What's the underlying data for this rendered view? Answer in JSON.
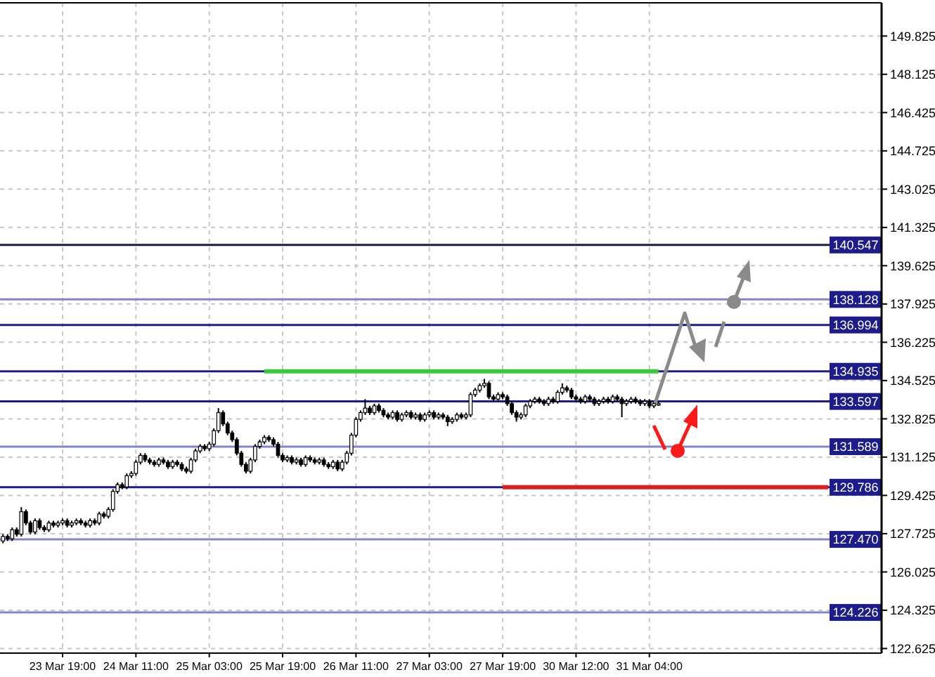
{
  "chart_data": {
    "type": "candlestick",
    "categories": [
      null,
      null,
      null,
      null,
      null,
      null,
      null,
      null,
      null,
      null,
      null,
      null,
      null,
      "23 Mar 19:00",
      null,
      null,
      null,
      null,
      null,
      null,
      null,
      null,
      null,
      null,
      null,
      null,
      null,
      null,
      null,
      "24 Mar 11:00",
      null,
      null,
      null,
      null,
      null,
      null,
      null,
      null,
      null,
      null,
      null,
      null,
      null,
      null,
      null,
      "25 Mar 03:00",
      null,
      null,
      null,
      null,
      null,
      null,
      null,
      null,
      null,
      null,
      null,
      null,
      null,
      null,
      null,
      "25 Mar 19:00",
      null,
      null,
      null,
      null,
      null,
      null,
      null,
      null,
      null,
      null,
      null,
      null,
      null,
      null,
      null,
      "26 Mar 11:00",
      null,
      null,
      null,
      null,
      null,
      null,
      null,
      null,
      null,
      null,
      null,
      null,
      null,
      null,
      null,
      "27 Mar 03:00",
      null,
      null,
      null,
      null,
      null,
      null,
      null,
      null,
      null,
      null,
      null,
      null,
      null,
      null,
      null,
      "27 Mar 19:00",
      null,
      null,
      null,
      null,
      null,
      null,
      null,
      null,
      null,
      null,
      null,
      null,
      null,
      null,
      null,
      "30 Mar 12:00",
      null,
      null,
      null,
      null,
      null,
      null,
      null,
      null,
      null,
      null,
      null,
      null,
      null,
      null,
      null,
      "31 Mar 04:00",
      null,
      null,
      null,
      null,
      null,
      null,
      null,
      null,
      null,
      null,
      null,
      null,
      null,
      null,
      null,
      null,
      null,
      null,
      null,
      null,
      null,
      null,
      null,
      null,
      null,
      null,
      null,
      null,
      null,
      null,
      null,
      null,
      null,
      null,
      null,
      null,
      null,
      null,
      null,
      null,
      null,
      null,
      null,
      null,
      null,
      null,
      null,
      null,
      null,
      null
    ],
    "ohlc": [
      [
        127.4,
        127.7,
        127.3,
        127.6
      ],
      [
        127.6,
        127.7,
        127.4,
        127.5
      ],
      [
        127.5,
        128.0,
        127.4,
        127.9
      ],
      [
        127.9,
        128.0,
        127.6,
        127.7
      ],
      [
        127.7,
        128.9,
        127.6,
        128.7
      ],
      [
        128.7,
        128.8,
        128.1,
        128.2
      ],
      [
        128.2,
        128.3,
        127.7,
        127.8
      ],
      [
        127.8,
        128.4,
        127.7,
        128.3
      ],
      [
        128.3,
        128.4,
        127.9,
        128.0
      ],
      [
        128.0,
        128.1,
        127.8,
        127.9
      ],
      [
        127.9,
        128.3,
        127.8,
        128.2
      ],
      [
        128.2,
        128.3,
        128.0,
        128.1
      ],
      [
        128.1,
        128.3,
        128.0,
        128.2
      ],
      [
        128.2,
        128.4,
        128.1,
        128.3
      ],
      [
        128.3,
        128.4,
        128.0,
        128.1
      ],
      [
        128.1,
        128.3,
        128.0,
        128.2
      ],
      [
        128.2,
        128.4,
        128.1,
        128.3
      ],
      [
        128.3,
        128.4,
        128.1,
        128.2
      ],
      [
        128.2,
        128.3,
        128.0,
        128.1
      ],
      [
        128.1,
        128.4,
        128.0,
        128.3
      ],
      [
        128.3,
        128.4,
        128.1,
        128.2
      ],
      [
        128.2,
        128.7,
        128.1,
        128.6
      ],
      [
        128.6,
        128.7,
        128.4,
        128.5
      ],
      [
        128.5,
        128.9,
        128.4,
        128.8
      ],
      [
        128.8,
        129.7,
        128.7,
        129.6
      ],
      [
        129.6,
        130.0,
        129.5,
        129.9
      ],
      [
        129.9,
        130.0,
        129.7,
        129.8
      ],
      [
        129.8,
        130.4,
        129.7,
        130.3
      ],
      [
        130.3,
        130.5,
        130.2,
        130.4
      ],
      [
        130.4,
        131.0,
        130.3,
        130.9
      ],
      [
        130.9,
        131.3,
        130.8,
        131.2
      ],
      [
        131.2,
        131.3,
        130.9,
        131.0
      ],
      [
        131.0,
        131.1,
        130.8,
        130.9
      ],
      [
        130.9,
        131.0,
        130.7,
        130.8
      ],
      [
        130.8,
        131.1,
        130.7,
        131.0
      ],
      [
        131.0,
        131.1,
        130.8,
        130.9
      ],
      [
        130.9,
        131.0,
        130.6,
        130.7
      ],
      [
        130.7,
        131.0,
        130.6,
        130.9
      ],
      [
        130.9,
        131.0,
        130.7,
        130.8
      ],
      [
        130.8,
        130.9,
        130.5,
        130.6
      ],
      [
        130.6,
        130.7,
        130.4,
        130.5
      ],
      [
        130.5,
        131.1,
        130.4,
        131.0
      ],
      [
        131.0,
        131.5,
        130.9,
        131.4
      ],
      [
        131.4,
        131.7,
        131.3,
        131.6
      ],
      [
        131.6,
        131.7,
        131.4,
        131.5
      ],
      [
        131.5,
        131.8,
        131.4,
        131.7
      ],
      [
        131.7,
        132.4,
        131.6,
        132.3
      ],
      [
        132.3,
        133.3,
        132.2,
        133.1
      ],
      [
        133.1,
        133.2,
        132.5,
        132.6
      ],
      [
        132.6,
        132.7,
        132.1,
        132.2
      ],
      [
        132.2,
        132.3,
        131.8,
        131.9
      ],
      [
        131.9,
        132.0,
        131.2,
        131.3
      ],
      [
        131.3,
        131.4,
        130.7,
        130.8
      ],
      [
        130.8,
        130.9,
        130.4,
        130.5
      ],
      [
        130.5,
        131.1,
        130.4,
        131.0
      ],
      [
        131.0,
        131.7,
        130.9,
        131.6
      ],
      [
        131.6,
        131.9,
        131.5,
        131.8
      ],
      [
        131.8,
        132.1,
        131.7,
        132.0
      ],
      [
        132.0,
        132.1,
        131.8,
        131.9
      ],
      [
        131.9,
        132.0,
        131.6,
        131.7
      ],
      [
        131.7,
        131.8,
        131.1,
        131.2
      ],
      [
        131.2,
        131.3,
        130.9,
        131.0
      ],
      [
        131.0,
        131.2,
        130.9,
        131.1
      ],
      [
        131.1,
        131.2,
        130.8,
        130.9
      ],
      [
        130.9,
        131.1,
        130.8,
        131.0
      ],
      [
        131.0,
        131.1,
        130.7,
        130.8
      ],
      [
        130.8,
        131.2,
        130.7,
        131.1
      ],
      [
        131.1,
        131.2,
        130.9,
        131.0
      ],
      [
        131.0,
        131.1,
        130.8,
        130.9
      ],
      [
        130.9,
        131.1,
        130.8,
        131.0
      ],
      [
        131.0,
        131.1,
        130.7,
        130.8
      ],
      [
        130.8,
        130.9,
        130.6,
        130.7
      ],
      [
        130.7,
        131.0,
        130.6,
        130.9
      ],
      [
        130.9,
        131.0,
        130.5,
        130.6
      ],
      [
        130.6,
        131.0,
        130.5,
        130.9
      ],
      [
        130.9,
        131.4,
        130.8,
        131.3
      ],
      [
        131.3,
        132.2,
        131.2,
        132.1
      ],
      [
        132.1,
        132.9,
        132.0,
        132.8
      ],
      [
        132.8,
        133.2,
        132.7,
        133.1
      ],
      [
        133.1,
        133.7,
        133.0,
        133.3
      ],
      [
        133.3,
        133.4,
        133.0,
        133.1
      ],
      [
        133.1,
        133.5,
        133.0,
        133.4
      ],
      [
        133.4,
        133.5,
        133.1,
        133.2
      ],
      [
        133.2,
        133.3,
        132.9,
        133.0
      ],
      [
        133.0,
        133.1,
        132.8,
        132.9
      ],
      [
        132.9,
        133.2,
        132.8,
        133.1
      ],
      [
        133.1,
        133.2,
        132.7,
        132.8
      ],
      [
        132.8,
        133.1,
        132.7,
        133.0
      ],
      [
        133.0,
        133.2,
        132.9,
        133.1
      ],
      [
        133.1,
        133.2,
        132.8,
        132.9
      ],
      [
        132.9,
        133.1,
        132.8,
        133.0
      ],
      [
        133.0,
        133.1,
        132.7,
        132.8
      ],
      [
        132.8,
        133.1,
        132.7,
        133.0
      ],
      [
        133.0,
        133.2,
        132.9,
        133.1
      ],
      [
        133.1,
        133.2,
        132.8,
        132.9
      ],
      [
        132.9,
        133.1,
        132.8,
        133.0
      ],
      [
        133.0,
        133.1,
        132.8,
        132.9
      ],
      [
        132.9,
        133.0,
        132.5,
        132.7
      ],
      [
        132.7,
        132.9,
        132.6,
        132.8
      ],
      [
        132.8,
        133.1,
        132.7,
        133.0
      ],
      [
        133.0,
        133.1,
        132.8,
        132.9
      ],
      [
        132.9,
        133.1,
        132.8,
        133.0
      ],
      [
        133.0,
        134.0,
        132.9,
        133.9
      ],
      [
        133.9,
        134.2,
        133.8,
        134.1
      ],
      [
        134.1,
        134.4,
        134.0,
        134.3
      ],
      [
        134.3,
        134.6,
        134.2,
        134.4
      ],
      [
        134.4,
        134.5,
        133.7,
        133.8
      ],
      [
        133.8,
        133.9,
        133.6,
        133.7
      ],
      [
        133.7,
        134.0,
        133.6,
        133.9
      ],
      [
        133.9,
        134.0,
        133.7,
        133.8
      ],
      [
        133.8,
        133.9,
        133.4,
        133.5
      ],
      [
        133.5,
        133.6,
        133.0,
        133.1
      ],
      [
        133.1,
        133.2,
        132.7,
        132.9
      ],
      [
        132.9,
        133.1,
        132.8,
        133.0
      ],
      [
        133.0,
        133.5,
        132.9,
        133.4
      ],
      [
        133.4,
        133.7,
        133.3,
        133.6
      ],
      [
        133.6,
        133.8,
        133.5,
        133.7
      ],
      [
        133.7,
        133.8,
        133.5,
        133.6
      ],
      [
        133.6,
        133.7,
        133.4,
        133.5
      ],
      [
        133.5,
        133.8,
        133.4,
        133.7
      ],
      [
        133.7,
        133.8,
        133.5,
        133.6
      ],
      [
        133.6,
        134.1,
        133.5,
        134.0
      ],
      [
        134.0,
        134.4,
        133.9,
        134.2
      ],
      [
        134.2,
        134.3,
        134.0,
        134.1
      ],
      [
        134.1,
        134.2,
        133.7,
        133.8
      ],
      [
        133.8,
        133.9,
        133.6,
        133.7
      ],
      [
        133.7,
        133.8,
        133.5,
        133.6
      ],
      [
        133.6,
        133.9,
        133.5,
        133.8
      ],
      [
        133.8,
        133.9,
        133.6,
        133.7
      ],
      [
        133.7,
        133.8,
        133.4,
        133.5
      ],
      [
        133.5,
        133.7,
        133.4,
        133.6
      ],
      [
        133.6,
        133.8,
        133.5,
        133.7
      ],
      [
        133.7,
        133.8,
        133.5,
        133.6
      ],
      [
        133.6,
        133.9,
        133.5,
        133.8
      ],
      [
        133.8,
        133.9,
        133.6,
        133.7
      ],
      [
        133.7,
        133.8,
        132.9,
        133.5
      ],
      [
        133.5,
        133.7,
        133.4,
        133.6
      ],
      [
        133.6,
        133.8,
        133.5,
        133.7
      ],
      [
        133.7,
        133.8,
        133.5,
        133.6
      ],
      [
        133.6,
        133.7,
        133.4,
        133.5
      ],
      [
        133.5,
        133.7,
        133.4,
        133.6
      ],
      [
        133.6,
        133.7,
        133.3,
        133.4
      ],
      [
        133.4,
        133.6,
        133.3,
        133.5
      ],
      [
        133.5,
        133.6,
        133.4,
        133.5
      ],
      null,
      null,
      null,
      null,
      null,
      null,
      null,
      null,
      null,
      null,
      null,
      null,
      null,
      null,
      null,
      null,
      null,
      null,
      null,
      null,
      null,
      null,
      null,
      null,
      null,
      null,
      null,
      null,
      null,
      null,
      null,
      null,
      null,
      null,
      null,
      null,
      null,
      null,
      null,
      null,
      null,
      null,
      null,
      null,
      null,
      null,
      null,
      null
    ],
    "series": [
      {
        "type": "line",
        "color": "#3cc83c",
        "values": [
          null,
          null,
          null,
          null,
          null,
          null,
          null,
          null,
          null,
          null,
          null,
          null,
          null,
          null,
          null,
          null,
          null,
          null,
          null,
          null,
          null,
          null,
          null,
          null,
          null,
          null,
          null,
          null,
          null,
          null,
          null,
          null,
          null,
          null,
          null,
          null,
          null,
          null,
          null,
          null,
          null,
          null,
          null,
          null,
          null,
          null,
          null,
          null,
          null,
          null,
          null,
          null,
          null,
          null,
          null,
          null,
          null,
          134.935,
          134.935,
          134.935,
          134.935,
          134.935,
          134.935,
          134.935,
          134.935,
          134.935,
          134.935,
          134.935,
          134.935,
          134.935,
          134.935,
          134.935,
          134.935,
          134.935,
          134.935,
          134.935,
          134.935,
          134.935,
          134.935,
          134.935,
          134.935,
          134.935,
          134.935,
          134.935,
          134.935,
          134.935,
          134.935,
          134.935,
          134.935,
          134.935,
          134.935,
          134.935,
          134.935,
          134.935,
          134.935,
          134.935,
          134.935,
          134.935,
          134.935,
          134.935,
          134.935,
          134.935,
          134.935,
          134.935,
          134.935,
          134.935,
          134.935,
          134.935,
          134.935,
          134.935,
          134.935,
          134.935,
          134.935,
          134.935,
          134.935,
          134.935,
          134.935,
          134.935,
          134.935,
          134.935,
          134.935,
          134.935,
          134.935,
          134.935,
          134.935,
          134.935,
          134.935,
          134.935,
          134.935,
          134.935,
          134.935,
          134.935,
          134.935,
          134.935,
          134.935,
          134.935,
          134.935,
          134.935,
          134.935,
          134.935,
          134.935,
          134.935,
          134.935,
          134.935,
          null,
          null,
          null,
          null,
          null,
          null,
          null,
          null,
          null,
          null,
          null,
          null,
          null,
          null,
          null,
          null,
          null,
          null,
          null,
          null,
          null,
          null,
          null,
          null,
          null,
          null,
          null,
          null,
          null,
          null,
          null,
          null,
          null,
          null,
          null,
          null,
          null,
          null,
          null,
          null,
          null,
          null,
          null,
          null,
          null,
          null,
          null,
          null
        ]
      },
      {
        "type": "line",
        "color": "#e01c1c",
        "values": [
          null,
          null,
          null,
          null,
          null,
          null,
          null,
          null,
          null,
          null,
          null,
          null,
          null,
          null,
          null,
          null,
          null,
          null,
          null,
          null,
          null,
          null,
          null,
          null,
          null,
          null,
          null,
          null,
          null,
          null,
          null,
          null,
          null,
          null,
          null,
          null,
          null,
          null,
          null,
          null,
          null,
          null,
          null,
          null,
          null,
          null,
          null,
          null,
          null,
          null,
          null,
          null,
          null,
          null,
          null,
          null,
          null,
          null,
          null,
          null,
          null,
          null,
          null,
          null,
          null,
          null,
          null,
          null,
          null,
          null,
          null,
          null,
          null,
          null,
          null,
          null,
          null,
          null,
          null,
          null,
          null,
          null,
          null,
          null,
          null,
          null,
          null,
          null,
          null,
          null,
          null,
          null,
          null,
          null,
          null,
          null,
          null,
          null,
          null,
          null,
          null,
          null,
          null,
          null,
          null,
          null,
          null,
          null,
          null,
          129.786,
          129.786,
          129.786,
          129.786,
          129.786,
          129.786,
          129.786,
          129.786,
          129.786,
          129.786,
          129.786,
          129.786,
          129.786,
          129.786,
          129.786,
          129.786,
          129.786,
          129.786,
          129.786,
          129.786,
          129.786,
          129.786,
          129.786,
          129.786,
          129.786,
          129.786,
          129.786,
          129.786,
          129.786,
          129.786,
          129.786,
          129.786,
          129.786,
          129.786,
          129.786,
          129.786,
          129.786,
          129.786,
          129.786,
          129.786,
          129.786,
          129.786,
          129.786,
          129.786,
          129.786,
          129.786,
          129.786,
          129.786,
          129.786,
          129.786,
          129.786,
          129.786,
          129.786,
          129.786,
          129.786,
          129.786,
          129.786,
          129.786,
          129.786,
          129.786,
          129.786,
          129.786,
          129.786,
          129.786,
          129.786,
          129.786,
          129.786,
          129.786,
          129.786,
          129.786,
          129.786,
          129.786,
          null,
          null,
          null,
          null,
          null,
          null,
          null,
          null,
          null,
          null,
          null
        ]
      }
    ],
    "ylim": [
      122.42,
      151.3
    ],
    "yticks": [
      122.625,
      124.325,
      126.025,
      127.725,
      129.425,
      131.125,
      132.825,
      134.525,
      136.225,
      137.925,
      139.625,
      141.325,
      143.025,
      144.725,
      146.425,
      148.125,
      149.825
    ],
    "ref_lines": [
      {
        "axis": "y",
        "value": 140.547,
        "label": "140.547",
        "color": "#1a1a50"
      },
      {
        "axis": "y",
        "value": 138.128,
        "label": "138.128",
        "color": "#8484cc"
      },
      {
        "axis": "y",
        "value": 136.994,
        "label": "136.994",
        "color": "#1c1c8c"
      },
      {
        "axis": "y",
        "value": 134.935,
        "label": "134.935",
        "color": "#1c1c8c"
      },
      {
        "axis": "y",
        "value": 133.597,
        "label": "133.597",
        "color": "#1c1c8c"
      },
      {
        "axis": "y",
        "value": 131.589,
        "label": "131.589",
        "color": "#8484cc"
      },
      {
        "axis": "y",
        "value": 129.786,
        "label": "129.786",
        "color": "#1c1c8c"
      },
      {
        "axis": "y",
        "value": 127.47,
        "label": "127.470",
        "color": "#8484cc"
      },
      {
        "axis": "y",
        "value": 124.226,
        "label": "124.226",
        "color": "#8484cc"
      }
    ],
    "grid": true
  }
}
